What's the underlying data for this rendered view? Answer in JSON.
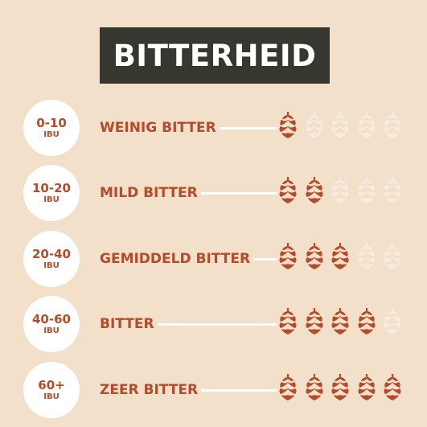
{
  "title": "BITTERHEID",
  "levels": [
    {
      "range": "0-10",
      "unit": "IBU",
      "label": "WEINIG BITTER",
      "rating": 1
    },
    {
      "range": "10-20",
      "unit": "IBU",
      "label": "MILD BITTER",
      "rating": 2
    },
    {
      "range": "20-40",
      "unit": "IBU",
      "label": "GEMIDDELD BITTER",
      "rating": 3
    },
    {
      "range": "40-60",
      "unit": "IBU",
      "label": "BITTER",
      "rating": 4
    },
    {
      "range": "60+",
      "unit": "IBU",
      "label": "ZEER BITTER",
      "rating": 5
    }
  ],
  "max_rating": 5,
  "colors": {
    "background": "#f3e0cb",
    "title_box": "#36372f",
    "accent": "#b44b2b",
    "hop_inactive": "#f7ebde"
  },
  "icon": "hop-cone-icon"
}
